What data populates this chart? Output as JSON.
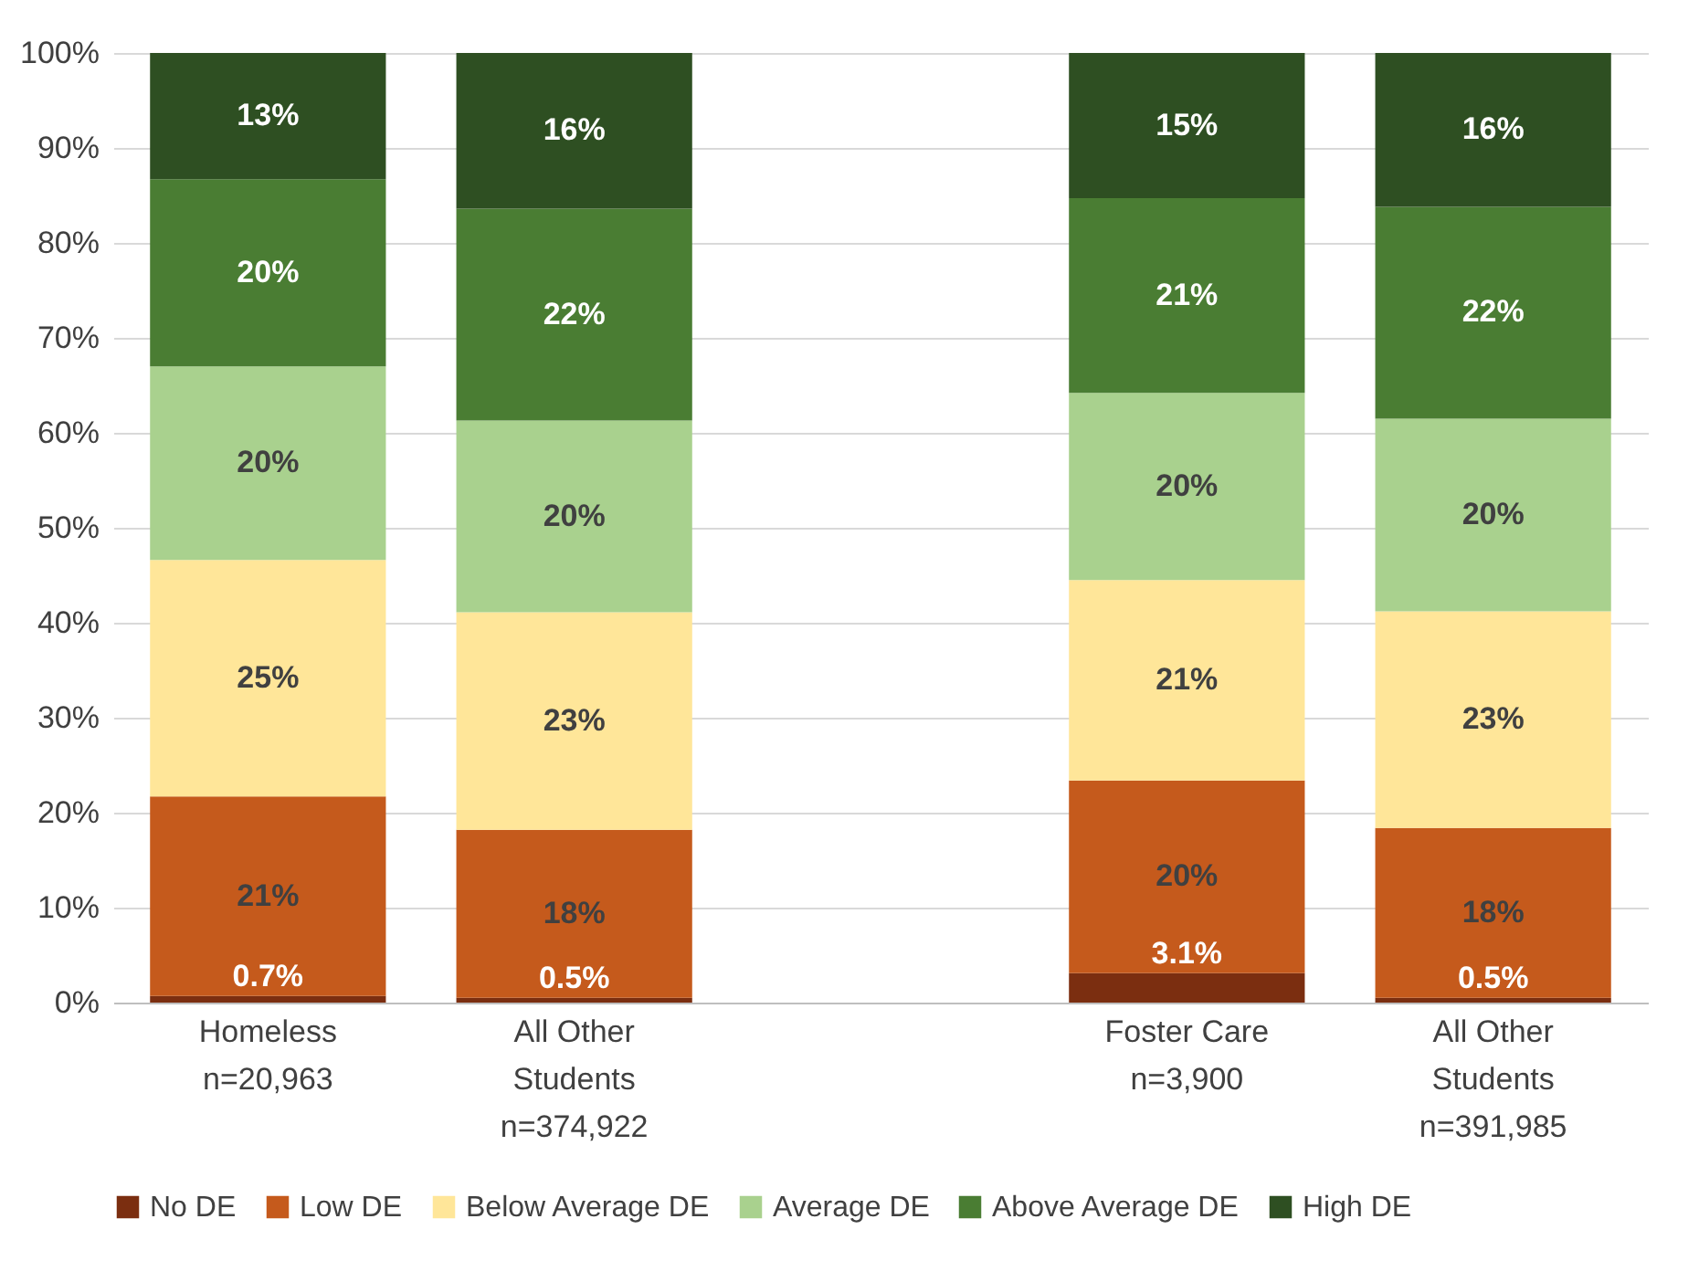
{
  "chart_data": {
    "type": "bar",
    "stacked": true,
    "categories": [
      "Homeless\nn=20,963",
      "All Other\nStudents\nn=374,922",
      null,
      "Foster Care\nn=3,900",
      "All Other\nStudents\nn=391,985"
    ],
    "ylim": [
      0,
      100
    ],
    "yticks": [
      {
        "value": 0,
        "label": "0%"
      },
      {
        "value": 10,
        "label": "10%"
      },
      {
        "value": 20,
        "label": "20%"
      },
      {
        "value": 30,
        "label": "30%"
      },
      {
        "value": 40,
        "label": "40%"
      },
      {
        "value": 50,
        "label": "50%"
      },
      {
        "value": 60,
        "label": "60%"
      },
      {
        "value": 70,
        "label": "70%"
      },
      {
        "value": 80,
        "label": "80%"
      },
      {
        "value": 90,
        "label": "90%"
      },
      {
        "value": 100,
        "label": "100%"
      }
    ],
    "grid": "y",
    "legend": "bottom",
    "series": [
      {
        "name": "No DE",
        "color": "#7b2e10",
        "values": [
          0.7,
          0.5,
          null,
          3.1,
          0.5
        ],
        "value_labels": [
          "0.7%",
          "0.5%",
          null,
          "3.1%",
          "0.5%"
        ]
      },
      {
        "name": "Low DE",
        "color": "#c55a1c",
        "values": [
          21.0,
          17.7,
          null,
          20.3,
          17.9
        ],
        "value_labels": [
          "21%",
          "18%",
          null,
          "20%",
          "18%"
        ]
      },
      {
        "name": "Below Average DE",
        "color": "#ffe699",
        "values": [
          24.9,
          22.9,
          null,
          21.1,
          22.8
        ],
        "value_labels": [
          "25%",
          "23%",
          null,
          "21%",
          "23%"
        ]
      },
      {
        "name": "Average DE",
        "color": "#a9d18e",
        "values": [
          20.4,
          20.2,
          null,
          19.7,
          20.3
        ],
        "value_labels": [
          "20%",
          "20%",
          null,
          "20%",
          "20%"
        ]
      },
      {
        "name": "Above Average DE",
        "color": "#4a7d33",
        "values": [
          19.7,
          22.3,
          null,
          20.5,
          22.3
        ],
        "value_labels": [
          "20%",
          "22%",
          null,
          "21%",
          "22%"
        ]
      },
      {
        "name": "High DE",
        "color": "#2e4f22",
        "values": [
          13.3,
          16.4,
          null,
          15.3,
          16.2
        ],
        "value_labels": [
          "13%",
          "16%",
          null,
          "15%",
          "16%"
        ]
      }
    ]
  }
}
